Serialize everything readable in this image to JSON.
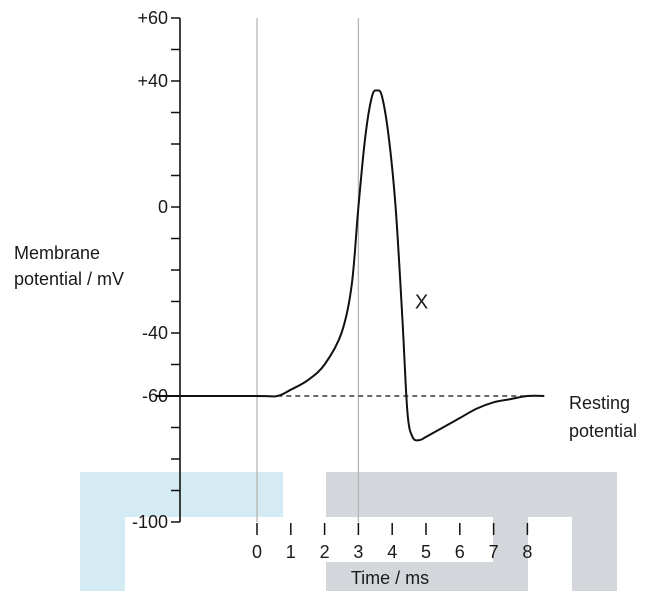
{
  "chart_data": {
    "type": "line",
    "title": "",
    "xlabel": "Time / ms",
    "ylabel_lines": [
      "Membrane",
      "potential / mV"
    ],
    "xlim": [
      -3.0,
      8.5
    ],
    "ylim": [
      -100,
      60
    ],
    "x_ticks": [
      0,
      1,
      2,
      3,
      4,
      5,
      6,
      7,
      8
    ],
    "x_tick_labels": [
      "0",
      "1",
      "2",
      "3",
      "4",
      "5",
      "6",
      "7",
      "8"
    ],
    "y_major_ticks": [
      60,
      40,
      0,
      -40,
      -60,
      -100
    ],
    "y_tick_labels": [
      "+60",
      "+40",
      "0",
      "-40",
      "-60",
      "-100"
    ],
    "y_minor_step": 10,
    "vertical_reference_lines": [
      0,
      3
    ],
    "series": [
      {
        "x": [
          -3.0,
          0.0,
          0.6,
          1.0,
          1.5,
          2.0,
          2.5,
          2.8,
          3.0,
          3.2,
          3.4,
          3.55,
          3.7,
          3.9,
          4.1,
          4.3,
          4.45,
          4.6,
          4.8,
          5.0,
          5.5,
          6.0,
          6.5,
          7.0,
          7.5,
          8.0,
          8.5
        ],
        "y": [
          -60,
          -60,
          -60,
          -58,
          -55,
          -50,
          -40,
          -25,
          0,
          22,
          35,
          37,
          35,
          22,
          0,
          -35,
          -65,
          -73,
          -74,
          -73,
          -70,
          -67,
          -64,
          -62,
          -61,
          -60,
          -60
        ]
      }
    ],
    "resting_potential": {
      "value": -60,
      "label_lines": [
        "Resting",
        "potential"
      ]
    },
    "annotations": [
      {
        "text": "X",
        "x": 4.75,
        "y": -30
      }
    ],
    "colors": {
      "curve": "#111111",
      "axis": "#111111",
      "reference_lines": "#b5b5b5",
      "overlay_blue": "#d5ebf3",
      "overlay_gray": "#d3d7dc"
    }
  }
}
